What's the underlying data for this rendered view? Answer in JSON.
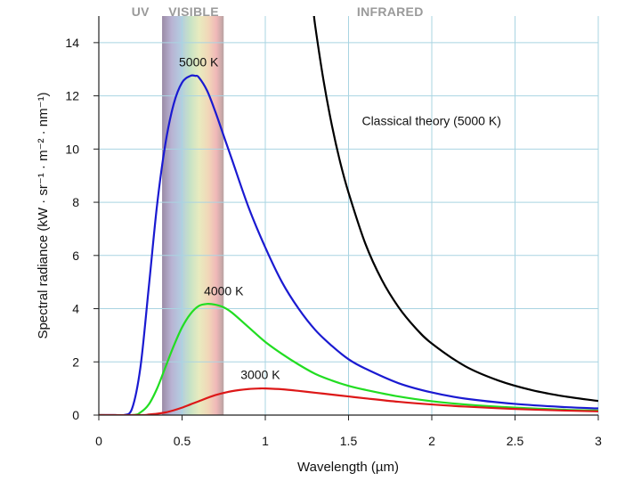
{
  "chart_data": {
    "type": "line",
    "xlabel": "Wavelength (µm)",
    "ylabel": "Spectral radiance (kW · sr⁻¹ · m⁻² · nm⁻¹)",
    "xlim": [
      0,
      3
    ],
    "ylim": [
      0,
      15
    ],
    "xticks": [
      0,
      0.5,
      1,
      1.5,
      2,
      2.5,
      3
    ],
    "xtick_labels": [
      "0",
      "0.5",
      "1",
      "1.5",
      "2",
      "2.5",
      "3"
    ],
    "yticks": [
      0,
      2,
      4,
      6,
      8,
      10,
      12,
      14
    ],
    "ytick_labels": [
      "0",
      "2",
      "4",
      "6",
      "8",
      "10",
      "12",
      "14"
    ],
    "grid": true,
    "colors": {
      "grid": "#a9d4e2",
      "spectrum_band": "#b3b3b3"
    },
    "regions": [
      {
        "label": "UV",
        "x_center": 0.25
      },
      {
        "label": "VISIBLE",
        "x_center": 0.57
      },
      {
        "label": "INFRARED",
        "x_center": 1.75
      }
    ],
    "visible_band": [
      0.38,
      0.75
    ],
    "series": [
      {
        "name": "5000 K",
        "color": "#1a1ad1",
        "x": [
          0,
          0.1,
          0.15,
          0.2,
          0.25,
          0.3,
          0.35,
          0.4,
          0.45,
          0.5,
          0.55,
          0.58,
          0.6,
          0.65,
          0.7,
          0.75,
          0.8,
          0.9,
          1.0,
          1.1,
          1.2,
          1.3,
          1.4,
          1.5,
          1.6,
          1.8,
          2.0,
          2.2,
          2.5,
          2.8,
          3.0
        ],
        "y": [
          0,
          0,
          0,
          0.25,
          1.8,
          4.8,
          7.9,
          10.2,
          11.7,
          12.5,
          12.75,
          12.75,
          12.7,
          12.2,
          11.4,
          10.5,
          9.6,
          7.8,
          6.3,
          5.0,
          4.0,
          3.2,
          2.6,
          2.1,
          1.75,
          1.2,
          0.85,
          0.62,
          0.42,
          0.3,
          0.25
        ]
      },
      {
        "name": "4000 K",
        "color": "#22dd22",
        "x": [
          0,
          0.2,
          0.25,
          0.3,
          0.35,
          0.4,
          0.45,
          0.5,
          0.55,
          0.6,
          0.65,
          0.7,
          0.75,
          0.8,
          0.9,
          1.0,
          1.1,
          1.2,
          1.3,
          1.4,
          1.5,
          1.6,
          1.8,
          2.0,
          2.2,
          2.5,
          2.8,
          3.0
        ],
        "y": [
          0,
          0,
          0.1,
          0.4,
          1.0,
          1.8,
          2.6,
          3.3,
          3.8,
          4.1,
          4.18,
          4.15,
          4.05,
          3.85,
          3.3,
          2.75,
          2.3,
          1.9,
          1.55,
          1.3,
          1.1,
          0.95,
          0.7,
          0.52,
          0.4,
          0.28,
          0.2,
          0.17
        ]
      },
      {
        "name": "3000 K",
        "color": "#dd1818",
        "x": [
          0,
          0.25,
          0.3,
          0.35,
          0.4,
          0.45,
          0.5,
          0.55,
          0.6,
          0.7,
          0.8,
          0.9,
          0.97,
          1.0,
          1.1,
          1.2,
          1.3,
          1.4,
          1.5,
          1.6,
          1.8,
          2.0,
          2.2,
          2.5,
          2.8,
          3.0
        ],
        "y": [
          0,
          0,
          0.02,
          0.05,
          0.1,
          0.18,
          0.28,
          0.4,
          0.52,
          0.75,
          0.9,
          0.98,
          1.0,
          1.0,
          0.97,
          0.91,
          0.84,
          0.77,
          0.7,
          0.63,
          0.5,
          0.4,
          0.32,
          0.23,
          0.17,
          0.14
        ]
      },
      {
        "name": "Classical theory (5000 K)",
        "color": "#000000",
        "x": [
          1.29,
          1.3,
          1.35,
          1.4,
          1.45,
          1.5,
          1.6,
          1.7,
          1.8,
          1.9,
          2.0,
          2.2,
          2.4,
          2.6,
          2.8,
          3.0
        ],
        "y": [
          15.2,
          14.62,
          12.57,
          10.89,
          9.5,
          8.36,
          6.46,
          5.08,
          4.06,
          3.29,
          2.69,
          1.84,
          1.3,
          0.94,
          0.7,
          0.53
        ]
      }
    ],
    "annotations": [
      {
        "text": "5000 K",
        "x": 0.6,
        "y": 13.1
      },
      {
        "text": "4000 K",
        "x": 0.75,
        "y": 4.5
      },
      {
        "text": "3000 K",
        "x": 0.97,
        "y": 1.35
      },
      {
        "text": "Classical theory (5000 K)",
        "x": 1.58,
        "y": 10.9
      }
    ]
  }
}
